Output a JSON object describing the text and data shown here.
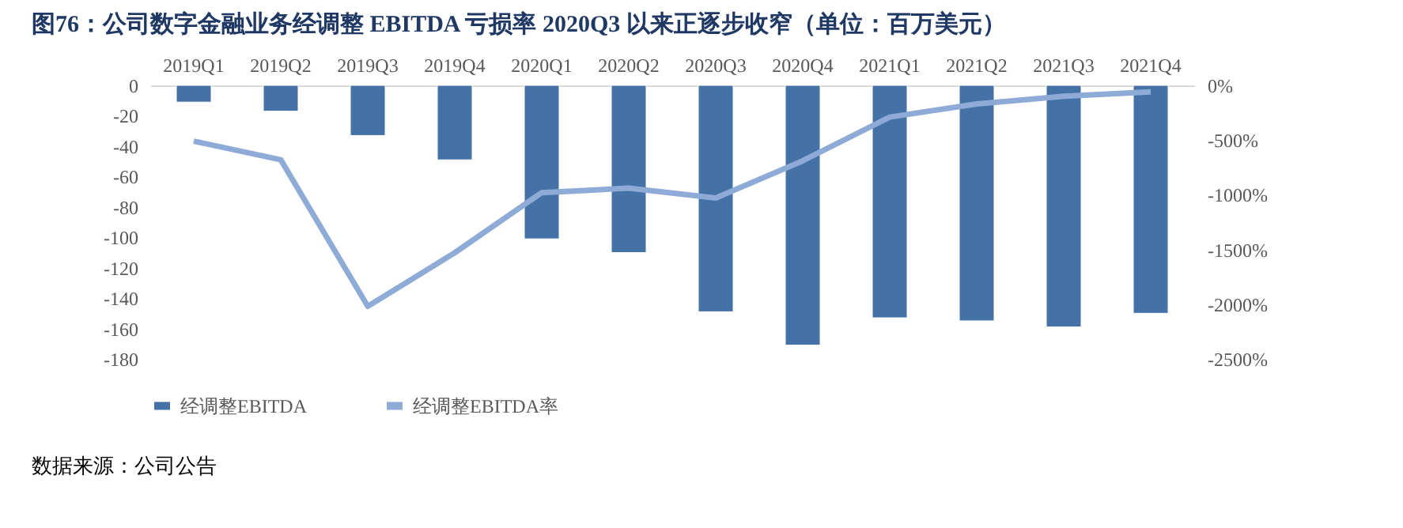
{
  "chart_data": {
    "type": "bar",
    "title": "图76：公司数字金融业务经调整 EBITDA 亏损率 2020Q3 以来正逐步收窄（单位：百万美元）",
    "categories": [
      "2019Q1",
      "2019Q2",
      "2019Q3",
      "2019Q4",
      "2020Q1",
      "2020Q2",
      "2020Q3",
      "2020Q4",
      "2021Q1",
      "2021Q2",
      "2021Q3",
      "2021Q4"
    ],
    "series": [
      {
        "name": "经调整EBITDA",
        "color": "#4471a6",
        "values": [
          -11,
          -17,
          -33,
          -49,
          -101,
          -110,
          -149,
          -171,
          -153,
          -155,
          -159,
          -150
        ]
      },
      {
        "name": "经调整EBITDA率",
        "type": "line",
        "axis": "y2",
        "color": "#8eaad6",
        "values": [
          -510,
          -680,
          -2020,
          -1530,
          -980,
          -940,
          -1030,
          -690,
          -290,
          -170,
          -100,
          -60
        ]
      }
    ],
    "ylim": [
      -180,
      0
    ],
    "yticks": [
      0,
      -20,
      -40,
      -60,
      -80,
      -100,
      -120,
      -140,
      -160,
      -180
    ],
    "y2lim": [
      -2500,
      0
    ],
    "y2ticks": [
      {
        "value": 0,
        "label": "0%"
      },
      {
        "value": -500,
        "label": "-500%"
      },
      {
        "value": -1000,
        "label": "-1000%"
      },
      {
        "value": -1500,
        "label": "-1500%"
      },
      {
        "value": -2000,
        "label": "-2000%"
      },
      {
        "value": -2500,
        "label": "-2500%"
      }
    ],
    "grid": false,
    "legend": "bottom",
    "line_style": "solid",
    "marker": "none",
    "annotations": [
      "数据来源：公司公告"
    ]
  }
}
